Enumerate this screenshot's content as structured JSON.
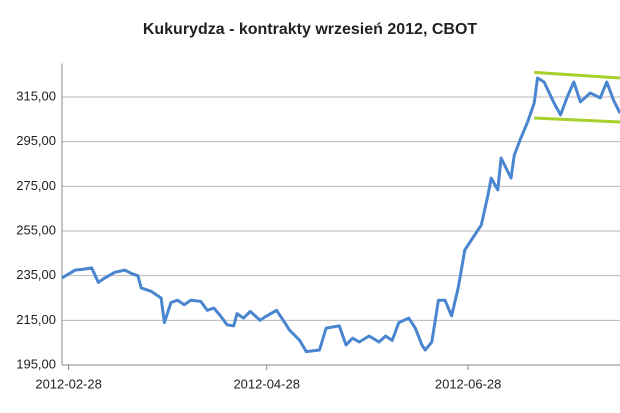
{
  "chart_data": {
    "type": "line",
    "title": "Kukurydza - kontrakty wrzesień 2012, CBOT",
    "x": [
      "2012-02-26",
      "2012-03-01",
      "2012-03-04",
      "2012-03-06",
      "2012-03-08",
      "2012-03-10",
      "2012-03-13",
      "2012-03-16",
      "2012-03-18",
      "2012-03-20",
      "2012-03-21",
      "2012-03-24",
      "2012-03-27",
      "2012-03-28",
      "2012-03-30",
      "2012-04-01",
      "2012-04-03",
      "2012-04-05",
      "2012-04-08",
      "2012-04-10",
      "2012-04-12",
      "2012-04-14",
      "2012-04-16",
      "2012-04-18",
      "2012-04-19",
      "2012-04-21",
      "2012-04-23",
      "2012-04-26",
      "2012-04-28",
      "2012-05-01",
      "2012-05-03",
      "2012-05-05",
      "2012-05-06",
      "2012-05-08",
      "2012-05-10",
      "2012-05-14",
      "2012-05-16",
      "2012-05-20",
      "2012-05-22",
      "2012-05-24",
      "2012-05-26",
      "2012-05-29",
      "2012-06-01",
      "2012-06-03",
      "2012-06-05",
      "2012-06-07",
      "2012-06-10",
      "2012-06-12",
      "2012-06-14",
      "2012-06-15",
      "2012-06-17",
      "2012-06-19",
      "2012-06-21",
      "2012-06-23",
      "2012-06-25",
      "2012-06-27",
      "2012-06-29",
      "2012-07-02",
      "2012-07-04",
      "2012-07-05",
      "2012-07-07",
      "2012-07-08",
      "2012-07-11",
      "2012-07-12",
      "2012-07-14",
      "2012-07-16",
      "2012-07-18",
      "2012-07-19",
      "2012-07-21",
      "2012-07-24",
      "2012-07-26",
      "2012-07-28",
      "2012-07-30",
      "2012-08-01",
      "2012-08-04",
      "2012-08-07",
      "2012-08-09",
      "2012-08-11",
      "2012-08-13"
    ],
    "series": [
      {
        "color": "#4a86d0",
        "values": [
          234,
          237.5,
          238,
          238.5,
          232,
          234,
          236.5,
          237.5,
          236,
          235,
          229.5,
          228,
          225,
          214,
          223,
          224,
          222,
          224,
          223.5,
          219.5,
          220.5,
          217,
          213,
          212.5,
          218,
          216,
          219,
          215,
          217,
          219.5,
          215,
          210.5,
          209,
          206,
          201,
          201.7,
          211.5,
          212.5,
          204,
          207,
          205.3,
          208,
          205.3,
          208,
          206,
          214,
          216,
          211.5,
          204,
          201.7,
          205.3,
          224,
          224,
          217,
          229.5,
          246.5,
          251,
          257.7,
          271,
          278.7,
          273.4,
          287.7,
          278.7,
          289,
          296.7,
          303.8,
          312.3,
          323.5,
          321.7,
          312.3,
          307,
          315,
          321.7,
          312.8,
          316.8,
          314.6,
          321.7,
          313.7,
          307.8
        ]
      }
    ],
    "channel": [
      {
        "color": "#a5d12a",
        "x": [
          "2012-07-18",
          "2012-08-13"
        ],
        "values": [
          326,
          323.5
        ]
      },
      {
        "color": "#a5d12a",
        "x": [
          "2012-07-18",
          "2012-08-13"
        ],
        "values": [
          305.6,
          303.8
        ]
      }
    ],
    "xlim": [
      "2012-02-26",
      "2012-08-13"
    ],
    "xticks": [
      "2012-02-28",
      "2012-04-28",
      "2012-06-28"
    ],
    "ylim": [
      195,
      330
    ],
    "yticks": [
      {
        "value": 195,
        "label": "195,00"
      },
      {
        "value": 215,
        "label": "215,00"
      },
      {
        "value": 235,
        "label": "235,00"
      },
      {
        "value": 255,
        "label": "255,00"
      },
      {
        "value": 275,
        "label": "275,00"
      },
      {
        "value": 295,
        "label": "295,00"
      },
      {
        "value": 315,
        "label": "315,00"
      }
    ],
    "grid": true
  }
}
